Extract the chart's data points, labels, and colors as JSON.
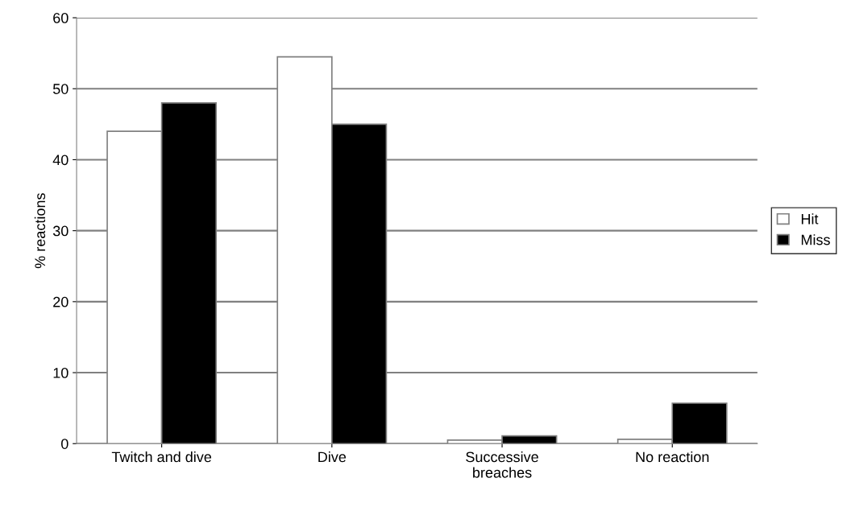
{
  "chart_data": {
    "type": "bar",
    "ylabel": "% reactions",
    "categories": [
      "Twitch and dive",
      "Dive",
      "Successive\nbreaches",
      "No reaction"
    ],
    "series": [
      {
        "name": "Hit",
        "color": "#ffffff",
        "values": [
          44,
          54.5,
          0.5,
          0.6
        ]
      },
      {
        "name": "Miss",
        "color": "#000000",
        "values": [
          48,
          45,
          1.1,
          5.7
        ]
      }
    ],
    "ylim": [
      0,
      60
    ],
    "yticks": [
      0,
      10,
      20,
      30,
      40,
      50,
      60
    ],
    "grid": "y",
    "legend": "right"
  }
}
